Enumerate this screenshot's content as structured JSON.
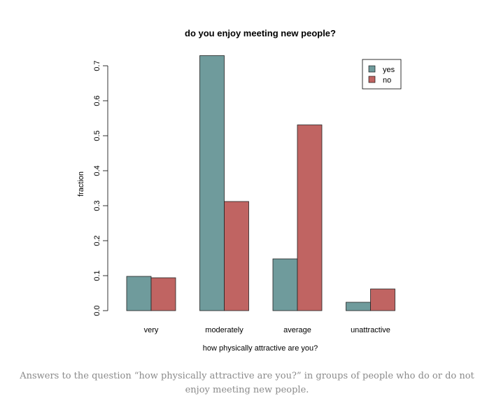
{
  "chart_data": {
    "type": "bar",
    "title": "do you enjoy meeting new people?",
    "xlabel": "how physically attractive are you?",
    "ylabel": "fraction",
    "categories": [
      "very",
      "moderately",
      "average",
      "unattractive"
    ],
    "series": [
      {
        "name": "yes",
        "color": "#6f9b9c",
        "values": [
          0.098,
          0.729,
          0.148,
          0.024
        ]
      },
      {
        "name": "no",
        "color": "#c06462",
        "values": [
          0.094,
          0.312,
          0.531,
          0.062
        ]
      }
    ],
    "ylim": [
      0,
      0.7
    ],
    "yticks": [
      "0.0",
      "0.1",
      "0.2",
      "0.3",
      "0.4",
      "0.5",
      "0.6",
      "0.7"
    ],
    "grid": false,
    "legend": "top-right"
  },
  "caption": "Answers to the question “how physically attractive are you?” in groups of people who do or do not enjoy meeting new people."
}
